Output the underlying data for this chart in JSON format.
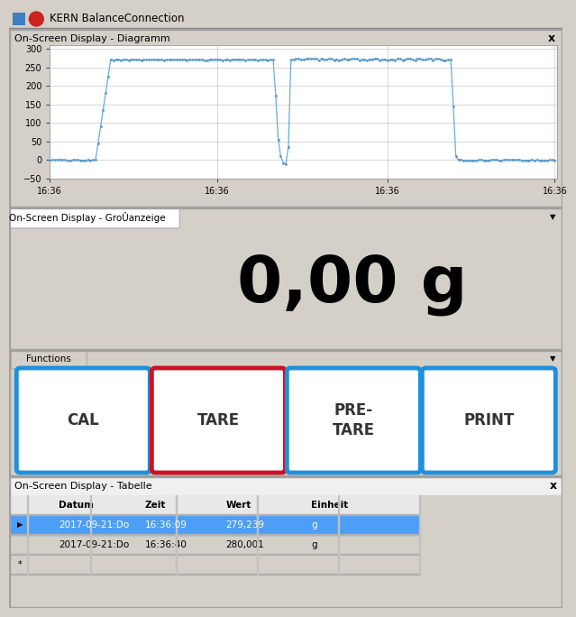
{
  "title_bar": "KERN BalanceConnection",
  "section1_title": "On-Screen Display - Diagramm",
  "section2_title": "On-Screen Display - GroÛanzeige",
  "section3_title": "Functions",
  "section4_title": "On-Screen Display - Tabelle",
  "big_display_text": "0,00 g",
  "buttons": [
    "CAL",
    "TARE",
    "PRE-\nTARE",
    "PRINT"
  ],
  "button_colors": [
    "#1e90dd",
    "#cc1122",
    "#1e90dd",
    "#1e90dd"
  ],
  "table_headers": [
    "Datum",
    "Zeit",
    "Wert",
    "Einheit"
  ],
  "table_row1": [
    "2017-09-21:Do",
    "16:36:09",
    "279,239",
    "g"
  ],
  "table_row2": [
    "2017-09-21:Do",
    "16:36:40",
    "280,001",
    "g"
  ],
  "row1_highlight": "#4d9ef7",
  "bg_color": "#f0f0f0",
  "plot_bg": "#ffffff",
  "chart_line_color": "#6aabdb",
  "chart_dot_color": "#5599cc",
  "tick_labels": [
    "16:36",
    "16:36",
    "16:36",
    "16:36"
  ],
  "yticks": [
    -50,
    0,
    50,
    100,
    150,
    200,
    250,
    300
  ],
  "window_bg": "#d4d0c8",
  "border_color": "#a0a0a0",
  "title_bg": "#ece9d8"
}
